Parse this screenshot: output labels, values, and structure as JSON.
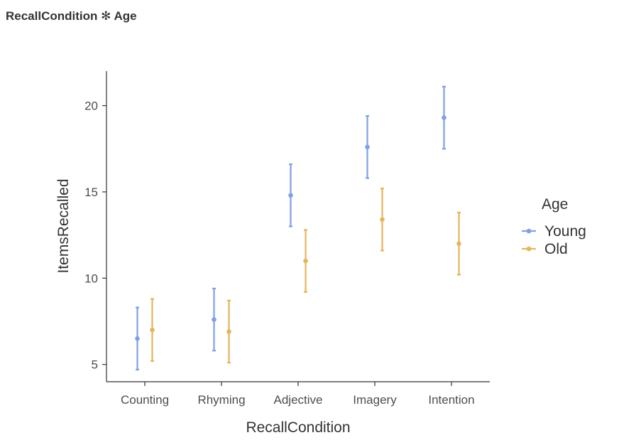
{
  "panel_title": "RecallCondition ✻ Age",
  "chart_data": {
    "type": "scatter",
    "subtype": "point-errorbar",
    "title": "",
    "xlabel": "RecallCondition",
    "ylabel": "ItemsRecalled",
    "categories": [
      "Counting",
      "Rhyming",
      "Adjective",
      "Imagery",
      "Intention"
    ],
    "ylim": [
      4,
      22
    ],
    "yticks": [
      5,
      10,
      15,
      20
    ],
    "grid": false,
    "legend": {
      "title": "Age",
      "placement": "right"
    },
    "series": [
      {
        "name": "Young",
        "color": "#7fa1e2",
        "values": [
          6.5,
          7.6,
          14.8,
          17.6,
          19.3
        ],
        "lower": [
          4.7,
          5.8,
          13.0,
          15.8,
          17.5
        ],
        "upper": [
          8.3,
          9.4,
          16.6,
          19.4,
          21.1
        ]
      },
      {
        "name": "Old",
        "color": "#e6b55a",
        "values": [
          7.0,
          6.9,
          11.0,
          13.4,
          12.0
        ],
        "lower": [
          5.2,
          5.1,
          9.2,
          11.6,
          10.2
        ],
        "upper": [
          8.8,
          8.7,
          12.8,
          15.2,
          13.8
        ]
      }
    ]
  }
}
